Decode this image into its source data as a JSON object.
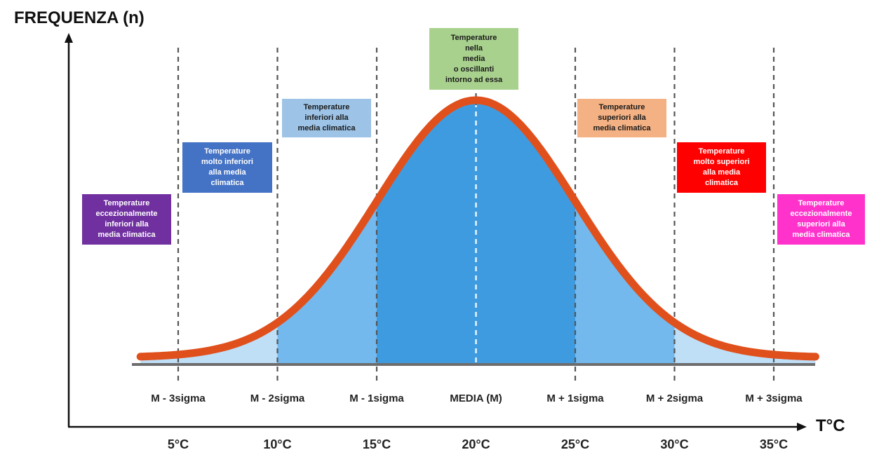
{
  "axes": {
    "y_title": "FREQUENZA (n)",
    "x_title": "T°C"
  },
  "sigma_labels": [
    "M - 3sigma",
    "M - 2sigma",
    "M - 1sigma",
    "MEDIA (M)",
    "M + 1sigma",
    "M + 2sigma",
    "M + 3sigma"
  ],
  "temperature_labels": [
    "5°C",
    "10°C",
    "15°C",
    "20°C",
    "25°C",
    "30°C",
    "35°C"
  ],
  "bands": [
    {
      "key": "minus3",
      "text": "Temperature eccezionalmente inferiori alla media climatica",
      "lines": [
        "Temperature",
        "eccezionalmente",
        "inferiori alla",
        "media climatica"
      ],
      "bg": "#7030a0",
      "fg": "#ffffff"
    },
    {
      "key": "minus2",
      "text": "Temperature molto inferiori alla media climatica",
      "lines": [
        "Temperature",
        "molto inferiori",
        "alla media",
        "climatica"
      ],
      "bg": "#4472c4",
      "fg": "#ffffff"
    },
    {
      "key": "minus1",
      "text": "Temperature inferiori alla media climatica",
      "lines": [
        "Temperature",
        "inferiori alla",
        "media climatica"
      ],
      "bg": "#9dc3e6",
      "fg": "#1a1a1a"
    },
    {
      "key": "mean",
      "text": "Temperature nella media o oscillanti intorno ad essa",
      "lines": [
        "Temperature",
        "nella",
        "media",
        "o oscillanti",
        "intorno ad essa"
      ],
      "bg": "#a9d18e",
      "fg": "#1a1a1a"
    },
    {
      "key": "plus1",
      "text": "Temperature superiori alla media climatica",
      "lines": [
        "Temperature",
        "superiori alla",
        "media climatica"
      ],
      "bg": "#f4b183",
      "fg": "#1a1a1a"
    },
    {
      "key": "plus2",
      "text": "Temperature molto superiori alla media climatica",
      "lines": [
        "Temperature",
        "molto superiori",
        "alla media",
        "climatica"
      ],
      "bg": "#ff0000",
      "fg": "#ffffff"
    },
    {
      "key": "plus3",
      "text": "Temperature eccezionalmente superiori alla media climatica",
      "lines": [
        "Temperature",
        "eccezionalmente",
        "superiori alla",
        "media climatica"
      ],
      "bg": "#ff33cc",
      "fg": "#ffffff"
    }
  ],
  "distribution": {
    "mean": 20,
    "sigma": 5
  },
  "colors": {
    "curve": "#e0501c",
    "fill_inner": "#3f9be0",
    "fill_middle": "#73b9ee",
    "fill_outer": "#bfdff7",
    "axis": "#111111",
    "baseline": "#6d6d6d",
    "dash_line": "#555555"
  }
}
